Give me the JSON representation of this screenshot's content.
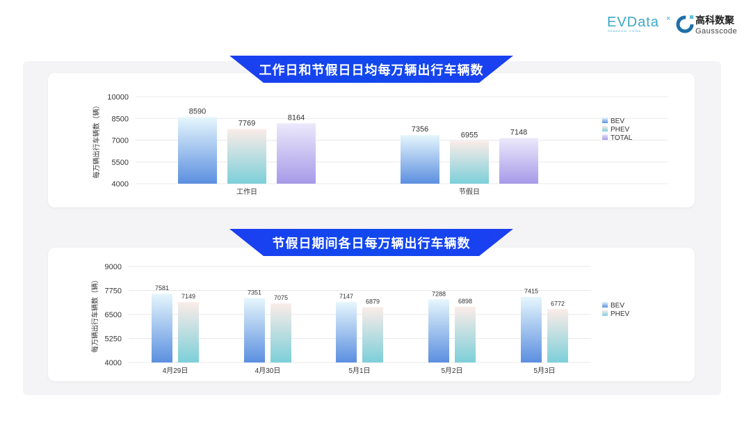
{
  "logos": {
    "evdata": "EVData",
    "evdata_sub": "SHANGHAI CHINA",
    "gauss_cn": "高科数聚",
    "gauss_en": "Gausscode"
  },
  "colors": {
    "banner": "#1b3ff0",
    "BEV": [
      "#e6f6fc",
      "#5b8fe0"
    ],
    "PHEV": [
      "#fbece8",
      "#7ccfd9"
    ],
    "TOTAL": [
      "#ece9fb",
      "#a69ae8"
    ]
  },
  "chart_data": [
    {
      "type": "bar",
      "title": "工作日和节假日日均每万辆出行车辆数",
      "ylabel": "每万辆出行车辆数（辆）",
      "xlabel": "",
      "categories": [
        "工作日",
        "节假日"
      ],
      "yticks": [
        "10000",
        "8500",
        "7000",
        "5500",
        "4000"
      ],
      "ylim": [
        4000,
        10000
      ],
      "grid": true,
      "legend": "right",
      "series": [
        {
          "name": "BEV",
          "values": [
            8590,
            7356
          ]
        },
        {
          "name": "PHEV",
          "values": [
            7769,
            6955
          ]
        },
        {
          "name": "TOTAL",
          "values": [
            8164,
            7148
          ]
        }
      ]
    },
    {
      "type": "bar",
      "title": "节假日期间各日每万辆出行车辆数",
      "ylabel": "每万辆出行车辆数（辆）",
      "xlabel": "",
      "categories": [
        "4月29日",
        "4月30日",
        "5月1日",
        "5月2日",
        "5月3日"
      ],
      "yticks": [
        "9000",
        "7750",
        "6500",
        "5250",
        "4000"
      ],
      "ylim": [
        4000,
        9000
      ],
      "grid": true,
      "legend": "right",
      "series": [
        {
          "name": "BEV",
          "values": [
            7581,
            7351,
            7147,
            7288,
            7415
          ]
        },
        {
          "name": "PHEV",
          "values": [
            7149,
            7075,
            6879,
            6898,
            6772
          ]
        }
      ]
    }
  ]
}
